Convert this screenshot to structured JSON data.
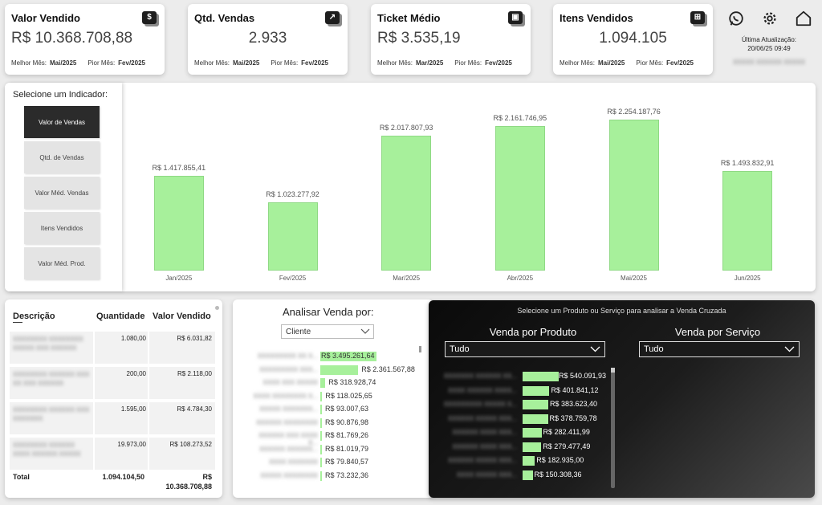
{
  "kpis": [
    {
      "title": "Valor Vendido",
      "icon": "$",
      "value": "R$ 10.368.708,88",
      "best_label": "Melhor Mês:",
      "best": "Mai/2025",
      "worst_label": "Pior Mês:",
      "worst": "Fev/2025"
    },
    {
      "title": "Qtd. Vendas",
      "icon": "↗",
      "value": "2.933",
      "best_label": "Melhor Mês:",
      "best": "Mai/2025",
      "worst_label": "Pior Mês:",
      "worst": "Fev/2025"
    },
    {
      "title": "Ticket Médio",
      "icon": "▣",
      "value": "R$ 3.535,19",
      "best_label": "Melhor Mês:",
      "best": "Mar/2025",
      "worst_label": "Pior Mês:",
      "worst": "Fev/2025"
    },
    {
      "title": "Itens Vendidos",
      "icon": "⊞",
      "value": "1.094.105",
      "best_label": "Melhor Mês:",
      "best": "Mai/2025",
      "worst_label": "Pior Mês:",
      "worst": "Fev/2025"
    }
  ],
  "update": {
    "label": "Última Atualização:",
    "datetime": "20/06/25 09:49",
    "user": "XXXXX XXXXXX XXXXX"
  },
  "indicator": {
    "title": "Selecione um Indicador:",
    "options": [
      "Valor de Vendas",
      "Qtd. de Vendas",
      "Valor Méd. Vendas",
      "Itens Vendidos",
      "Valor Méd. Prod."
    ],
    "selected": "Valor de Vendas"
  },
  "chart_data": {
    "type": "bar",
    "categories": [
      "Jan/2025",
      "Fev/2025",
      "Mar/2025",
      "Abr/2025",
      "Mai/2025",
      "Jun/2025"
    ],
    "values": [
      1417855.41,
      1023277.92,
      2017807.93,
      2161746.95,
      2254187.76,
      1493832.91
    ],
    "labels": [
      "R$ 1.417.855,41",
      "R$ 1.023.277,92",
      "R$ 2.017.807,93",
      "R$ 2.161.746,95",
      "R$ 2.254.187,76",
      "R$ 1.493.832,91"
    ],
    "ylim": [
      0,
      2400000
    ],
    "color": "#a7f09b"
  },
  "table": {
    "headers": [
      "Descrição",
      "Quantidade",
      "Valor Vendido"
    ],
    "rows": [
      {
        "desc": "XXXXXXXX XXXXXXXX XXXXX XXX XXXXXX",
        "qty": "1.080,00",
        "value": "R$ 6.031,82"
      },
      {
        "desc": "XXXXXXXX XXXXXX XXX XX XXX XXXXXX",
        "qty": "200,00",
        "value": "R$ 2.118,00"
      },
      {
        "desc": "XXXXXXXX XXXXXX XXX XXXXXXX",
        "qty": "1.595,00",
        "value": "R$ 4.784,30"
      },
      {
        "desc": "XXXXXXXX XXXXXX XXXX XXXXXX XXXXX",
        "qty": "19.973,00",
        "value": "R$ 108.273,52"
      }
    ],
    "total_label": "Total",
    "total_qty": "1.094.104,50",
    "total_value_1": "R$",
    "total_value_2": "10.368.708,88"
  },
  "analisar": {
    "title": "Analisar Venda por:",
    "select": "Cliente",
    "items": [
      {
        "name": "XXXXXXXXX XX X...",
        "value": "R$ 3.495.261,64",
        "amount": 3495261.64
      },
      {
        "name": "XXXXXXXXX XXX...",
        "value": "R$ 2.361.567,88",
        "amount": 2361567.88
      },
      {
        "name": "XXXX XXX XXXXX",
        "value": "R$ 318.928,74",
        "amount": 318928.74
      },
      {
        "name": "XXXX XXXXXXXX X...",
        "value": "R$ 118.025,65",
        "amount": 118025.65
      },
      {
        "name": "XXXXX XXXXXXX...",
        "value": "R$ 93.007,63",
        "amount": 93007.63
      },
      {
        "name": "XXXXXX XXXXXXXX",
        "value": "R$ 90.876,98",
        "amount": 90876.98
      },
      {
        "name": "XXXXXX XXX XXXX X...",
        "value": "R$ 81.769,26",
        "amount": 81769.26
      },
      {
        "name": "XXXXXX XXXXXX...",
        "value": "R$ 81.019,79",
        "amount": 81019.79
      },
      {
        "name": "XXXX XXXXXXX",
        "value": "R$ 79.840,57",
        "amount": 79840.57
      },
      {
        "name": "XXXXX XXXXXXXX",
        "value": "R$ 73.232,36",
        "amount": 73232.36
      }
    ]
  },
  "cross": {
    "title": "Selecione um Produto ou Serviço para analisar a Venda Cruzada",
    "prod_title": "Venda por Produto",
    "serv_title": "Venda por Serviço",
    "prod_select": "Tudo",
    "serv_select": "Tudo",
    "items": [
      {
        "name": "XXXXXXX XXXXXX XX...",
        "value": "R$ 540.091,93",
        "amount": 540091.93
      },
      {
        "name": "XXXX XXXXXX XXXX...",
        "value": "R$ 401.841,12",
        "amount": 401841.12
      },
      {
        "name": "XXXXXXXXX XXXXX X...",
        "value": "R$ 383.623,40",
        "amount": 383623.4
      },
      {
        "name": "XXXXXX XXXXX XXX...",
        "value": "R$ 378.759,78",
        "amount": 378759.78
      },
      {
        "name": "XXXXXX XXXX XXX...",
        "value": "R$ 282.411,99",
        "amount": 282411.99
      },
      {
        "name": "XXXXXX XXXX XXX...",
        "value": "R$ 279.477,49",
        "amount": 279477.49
      },
      {
        "name": "XXXXXX XXXXX XXX...",
        "value": "R$ 182.935,00",
        "amount": 182935.0
      },
      {
        "name": "XXXX XXXXX XXX...",
        "value": "R$ 150.308,36",
        "amount": 150308.36
      }
    ]
  }
}
